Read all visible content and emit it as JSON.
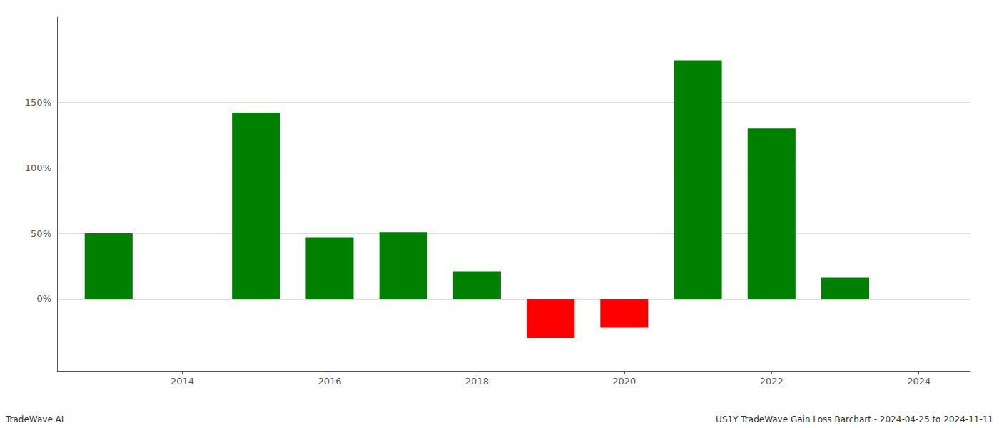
{
  "chart_data": {
    "type": "bar",
    "x": [
      2013,
      2015,
      2016,
      2017,
      2018,
      2019,
      2020,
      2021,
      2022,
      2023
    ],
    "values": [
      50,
      142,
      47,
      51,
      21,
      -30,
      -22,
      182,
      130,
      16
    ],
    "colors": [
      "#008000",
      "#008000",
      "#008000",
      "#008000",
      "#008000",
      "#ff0000",
      "#ff0000",
      "#008000",
      "#008000",
      "#008000"
    ],
    "xlim": [
      2012.3,
      2024.7
    ],
    "xticks": [
      2014,
      2016,
      2018,
      2020,
      2022,
      2024
    ],
    "ylim": [
      -55,
      215
    ],
    "yticks": [
      {
        "value": 0,
        "label": "0%"
      },
      {
        "value": 50,
        "label": "50%"
      },
      {
        "value": 100,
        "label": "100%"
      },
      {
        "value": 150,
        "label": "150%"
      }
    ],
    "grid": true,
    "annotations": [
      "TradeWave.AI",
      "US1Y TradeWave Gain Loss Barchart - 2024-04-25 to 2024-11-11"
    ]
  }
}
